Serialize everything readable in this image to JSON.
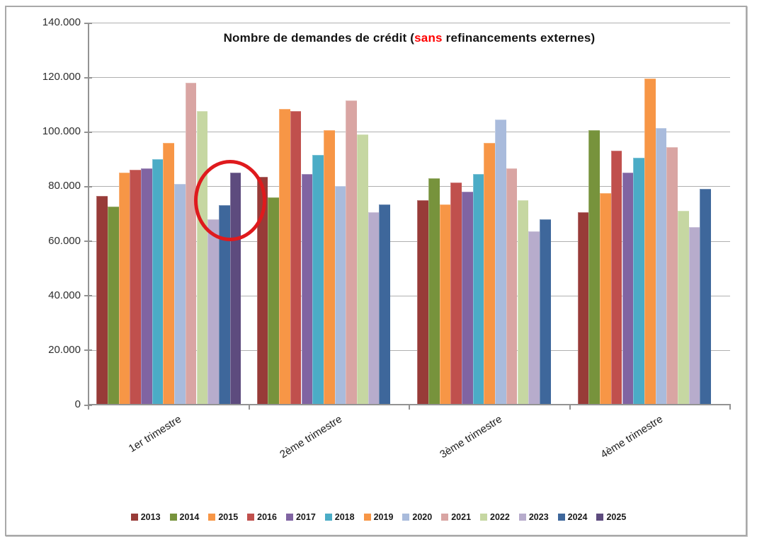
{
  "title": {
    "prefix": "Nombre de demandes de crédit (",
    "highlight": "sans",
    "suffix": " refinancements externes)"
  },
  "axis": {
    "y_tick_labels_top_to_bottom": [
      "140.000",
      "120.000",
      "100.000",
      "80.000",
      "60.000",
      "40.000",
      "20.000",
      "0"
    ]
  },
  "annotations": {
    "red_circle_note": "red ellipse drawn around the 2023/2024/2025 bars of 1er trimestre"
  },
  "chart_data": {
    "type": "bar",
    "title": "Nombre de demandes de crédit (sans refinancements externes)",
    "title_highlight_word": "sans",
    "title_highlight_color": "#ff0000",
    "categories": [
      "1er trimestre",
      "2ème trimestre",
      "3ème trimestre",
      "4ème trimestre"
    ],
    "ylim": [
      0,
      140000
    ],
    "ytick_step": 20000,
    "grid": true,
    "legend_position": "bottom",
    "series": [
      {
        "name": "2013",
        "color": "#983b38",
        "values": [
          76500,
          83500,
          75000,
          70500
        ]
      },
      {
        "name": "2014",
        "color": "#77933c",
        "values": [
          72500,
          76000,
          83000,
          100500
        ]
      },
      {
        "name": "2015",
        "color": "#f79646",
        "values": [
          85000,
          108500,
          73500,
          77500
        ]
      },
      {
        "name": "2016",
        "color": "#c0504d",
        "values": [
          86000,
          107500,
          81500,
          93000
        ]
      },
      {
        "name": "2017",
        "color": "#8064a2",
        "values": [
          86500,
          84500,
          78000,
          85000
        ]
      },
      {
        "name": "2018",
        "color": "#4bacc6",
        "values": [
          90000,
          91500,
          84500,
          90500
        ]
      },
      {
        "name": "2019",
        "color": "#f79646",
        "values": [
          96000,
          100500,
          96000,
          119500
        ]
      },
      {
        "name": "2020",
        "color": "#a9bbdc",
        "values": [
          81000,
          80000,
          104500,
          101500
        ]
      },
      {
        "name": "2021",
        "color": "#d9a5a3",
        "values": [
          118000,
          111500,
          86500,
          94500
        ]
      },
      {
        "name": "2022",
        "color": "#c6d7a2",
        "values": [
          107500,
          99000,
          75000,
          71000
        ]
      },
      {
        "name": "2023",
        "color": "#b7accc",
        "values": [
          68000,
          70500,
          63500,
          65000
        ]
      },
      {
        "name": "2024",
        "color": "#3e679b",
        "values": [
          73000,
          73500,
          68000,
          79000
        ]
      },
      {
        "name": "2025",
        "color": "#5d4b7e",
        "values": [
          85000,
          null,
          null,
          null
        ]
      }
    ]
  }
}
